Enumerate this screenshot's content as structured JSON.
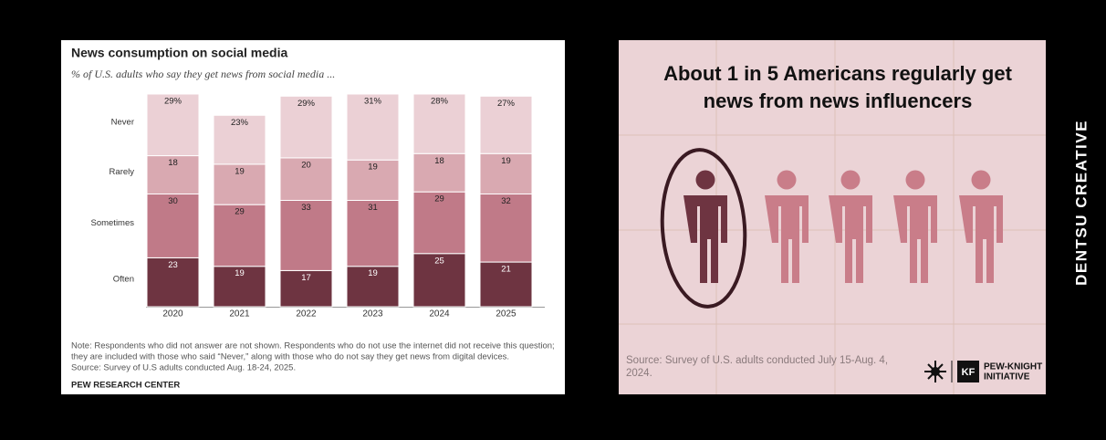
{
  "chart_data": {
    "type": "bar",
    "stacked": true,
    "title": "News consumption on social media",
    "subtitle": "% of U.S. adults who say they get news from social media ...",
    "categories": [
      "2020",
      "2021",
      "2022",
      "2023",
      "2024",
      "2025"
    ],
    "series": [
      {
        "name": "Often",
        "color": "#6e3441",
        "values": [
          23,
          19,
          17,
          19,
          25,
          21
        ]
      },
      {
        "name": "Sometimes",
        "color": "#c07a88",
        "values": [
          30,
          29,
          33,
          31,
          29,
          32
        ]
      },
      {
        "name": "Rarely",
        "color": "#d9a9b1",
        "values": [
          18,
          19,
          20,
          19,
          18,
          19
        ]
      },
      {
        "name": "Never",
        "color": "#ebd0d5",
        "values": [
          29,
          23,
          29,
          31,
          28,
          27
        ],
        "value_labels": [
          "29%",
          "23%",
          "29%",
          "31%",
          "28%",
          "27%"
        ]
      }
    ],
    "ylim": [
      0,
      100
    ],
    "note": [
      "Note: Respondents who did not answer are not shown. Respondents who do not use the internet did not receive this question;",
      "they are included with those who said “Never,” along with those who do not say they get news from digital devices.",
      "Source: Survey of U.S adults conducted Aug. 18-24, 2025."
    ],
    "footer": "PEW RESEARCH CENTER"
  },
  "infographic": {
    "title": [
      "About 1 in 5 Americans regularly get",
      "news from news influencers"
    ],
    "source": [
      "Source: Survey of U.S. adults conducted July 15-Aug. 4,",
      "2024."
    ],
    "logo_mark": "KF",
    "logo_text": [
      "PEW-KNIGHT",
      "INITIATIVE"
    ]
  },
  "side_label": "DENTSU CREATIVE"
}
